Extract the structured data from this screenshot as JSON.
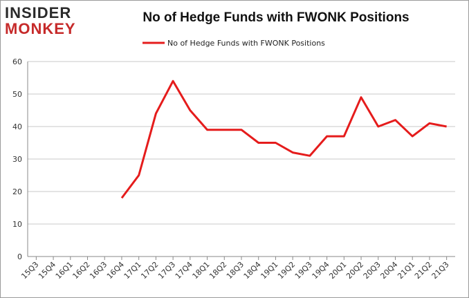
{
  "logo": {
    "line1": "INSIDER",
    "line2": "MONKEY"
  },
  "chart_data": {
    "type": "line",
    "title": "No of Hedge Funds with FWONK Positions",
    "xlabel": "",
    "ylabel": "",
    "categories": [
      "15Q3",
      "15Q4",
      "16Q1",
      "16Q2",
      "16Q3",
      "16Q4",
      "17Q1",
      "17Q2",
      "17Q3",
      "17Q4",
      "18Q1",
      "18Q2",
      "18Q3",
      "18Q4",
      "19Q1",
      "19Q2",
      "19Q3",
      "19Q4",
      "20Q1",
      "20Q2",
      "20Q3",
      "20Q4",
      "21Q1",
      "21Q2",
      "21Q3"
    ],
    "series": [
      {
        "name": "No of Hedge Funds with FWONK Positions",
        "color": "#e51c1c",
        "values": [
          null,
          null,
          null,
          null,
          null,
          18,
          25,
          44,
          54,
          45,
          39,
          39,
          39,
          35,
          35,
          32,
          31,
          37,
          37,
          49,
          40,
          42,
          37,
          41,
          40
        ]
      }
    ],
    "ylim": [
      0,
      60
    ],
    "yticks": [
      0,
      10,
      20,
      30,
      40,
      50,
      60
    ],
    "grid": true,
    "legend": "top-center"
  }
}
